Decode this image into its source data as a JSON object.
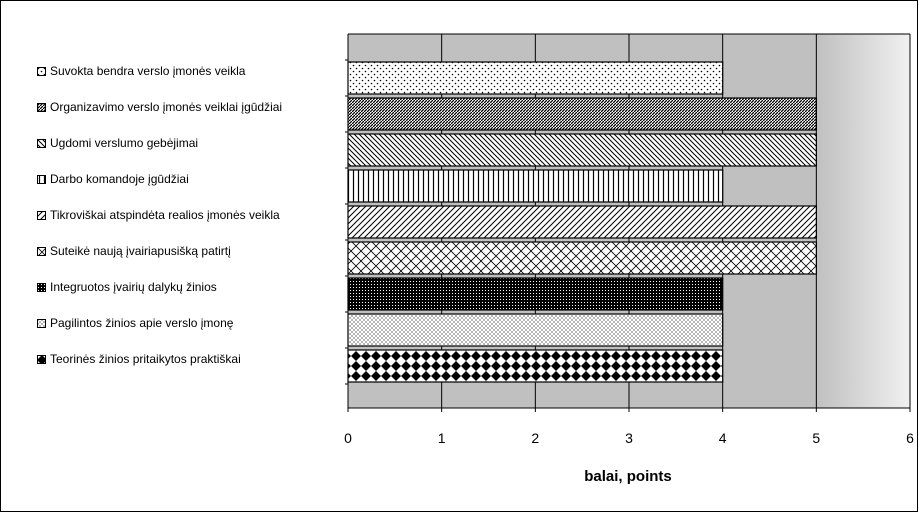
{
  "chart_data": {
    "type": "bar",
    "orientation": "horizontal",
    "title": "",
    "xlabel": "balai, points",
    "ylabel": "",
    "xlim": [
      0,
      6
    ],
    "x_ticks": [
      "0",
      "1",
      "2",
      "3",
      "4",
      "5",
      "6"
    ],
    "grid": true,
    "legend_position": "left",
    "categories": [
      "Suvokta bendra verslo įmonės veikla",
      "Organizavimo verslo įmonės veiklai įgūdžiai",
      "Ugdomi verslumo gebėjimai",
      "Darbo komandoje įgūdžiai",
      "Tikroviškai atspindėta realios įmonės veikla",
      "Suteikė naują įvairiapusišką patirtį",
      "Integruotos įvairių dalykų žinios",
      "Pagilintos žinios apie verslo įmonę",
      "Teorinės žinios pritaikytos praktiškai"
    ],
    "values": [
      4,
      5,
      5,
      4,
      5,
      5,
      4,
      4,
      4
    ],
    "patterns": [
      "dots-sparse",
      "dense-diagonal",
      "diagonal-back",
      "vertical",
      "diagonal-fwd",
      "zigzag",
      "dark-grid",
      "dots-dense",
      "checker"
    ],
    "colors": {
      "plot_bg": "#c0c0c0",
      "plot_bg_right": "#e6e6e6",
      "bar_fill": "#ffffff",
      "bar_ink": "#000000"
    }
  }
}
